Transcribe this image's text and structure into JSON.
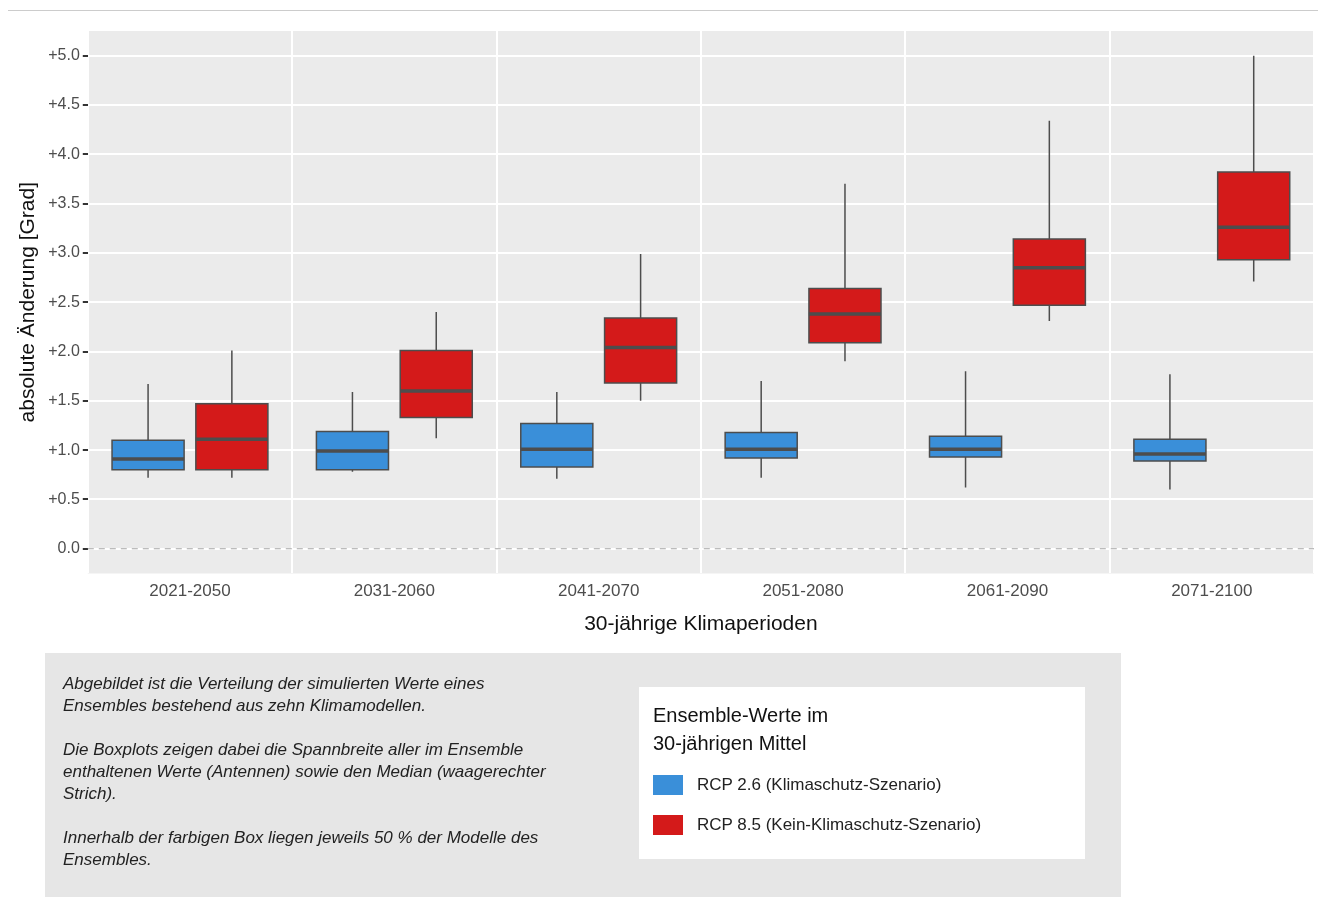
{
  "chart_data": {
    "type": "box",
    "xlabel": "30-jährige Klimaperioden",
    "ylabel": "absolute Änderung [Grad]",
    "legend_title": "Ensemble-Werte im\n30-jährigen Mittel",
    "legend": "bottom",
    "grid": true,
    "categories": [
      "2021-2050",
      "2031-2060",
      "2041-2070",
      "2051-2080",
      "2061-2090",
      "2071-2100"
    ],
    "ylim": [
      -0.25,
      5.25
    ],
    "yticks": [
      {
        "value": 0,
        "label": "0.0"
      },
      {
        "value": 0.5,
        "label": "+0.5"
      },
      {
        "value": 1,
        "label": "+1.0"
      },
      {
        "value": 1.5,
        "label": "+1.5"
      },
      {
        "value": 2,
        "label": "+2.0"
      },
      {
        "value": 2.5,
        "label": "+2.5"
      },
      {
        "value": 3,
        "label": "+3.0"
      },
      {
        "value": 3.5,
        "label": "+3.5"
      },
      {
        "value": 4,
        "label": "+4.0"
      },
      {
        "value": 4.5,
        "label": "+4.5"
      },
      {
        "value": 5,
        "label": "+5.0"
      }
    ],
    "ref_lines": [
      {
        "axis": "y",
        "value": 0,
        "color": "#a6a6a6",
        "line_style": "dashed"
      }
    ],
    "series": [
      {
        "name": "RCP 2.6 (Klimaschutz-Szenario)",
        "color": "#3a8fd9",
        "boxes": [
          {
            "low": 0.72,
            "q1": 0.8,
            "median": 0.91,
            "q3": 1.1,
            "high": 1.67
          },
          {
            "low": 0.78,
            "q1": 0.8,
            "median": 0.99,
            "q3": 1.19,
            "high": 1.59
          },
          {
            "low": 0.71,
            "q1": 0.83,
            "median": 1.01,
            "q3": 1.27,
            "high": 1.59
          },
          {
            "low": 0.72,
            "q1": 0.92,
            "median": 1.01,
            "q3": 1.18,
            "high": 1.7
          },
          {
            "low": 0.62,
            "q1": 0.93,
            "median": 1.01,
            "q3": 1.14,
            "high": 1.8
          },
          {
            "low": 0.6,
            "q1": 0.89,
            "median": 0.96,
            "q3": 1.11,
            "high": 1.77
          }
        ]
      },
      {
        "name": "RCP 8.5 (Kein-Klimaschutz-Szenario)",
        "color": "#d41a1a",
        "boxes": [
          {
            "low": 0.72,
            "q1": 0.8,
            "median": 1.11,
            "q3": 1.47,
            "high": 2.01
          },
          {
            "low": 1.12,
            "q1": 1.33,
            "median": 1.6,
            "q3": 2.01,
            "high": 2.4
          },
          {
            "low": 1.5,
            "q1": 1.68,
            "median": 2.04,
            "q3": 2.34,
            "high": 2.99
          },
          {
            "low": 1.9,
            "q1": 2.09,
            "median": 2.38,
            "q3": 2.64,
            "high": 3.7
          },
          {
            "low": 2.31,
            "q1": 2.47,
            "median": 2.85,
            "q3": 3.14,
            "high": 4.34
          },
          {
            "low": 2.71,
            "q1": 2.93,
            "median": 3.26,
            "q3": 3.82,
            "high": 5.0
          }
        ]
      }
    ],
    "annotations": [
      "Abgebildet ist die Verteilung der simulierten Werte eines Ensembles bestehend aus zehn Klimamodellen.",
      "Die Boxplots zeigen dabei die Spannbreite aller im Ensemble enthaltenen Werte (Antennen) sowie den Median (waagerechter Strich).",
      "Innerhalb der farbigen Box liegen jeweils 50 % der Modelle des Ensembles."
    ]
  }
}
